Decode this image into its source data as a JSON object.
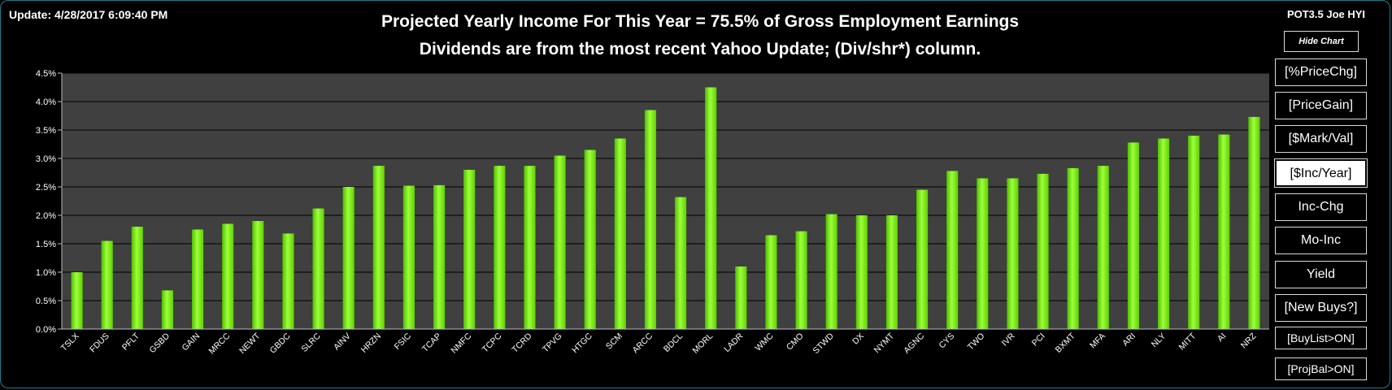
{
  "header": {
    "update": "Update: 4/28/2017 6:09:40 PM",
    "title_line1": "Projected Yearly Income For This Year = 75.5% of Gross Employment Earnings",
    "title_line2": "Dividends are from the most recent Yahoo Update; (Div/shr*) column.",
    "corner_label": "POT3.5 Joe HYI"
  },
  "buttons": {
    "hide_chart": "Hide Chart",
    "items": [
      {
        "label": "[%PriceChg]",
        "active": false
      },
      {
        "label": "[PriceGain]",
        "active": false
      },
      {
        "label": "[$Mark/Val]",
        "active": false
      },
      {
        "label": "[$Inc/Year]",
        "active": true
      },
      {
        "label": "Inc-Chg",
        "active": false
      },
      {
        "label": "Mo-Inc",
        "active": false
      },
      {
        "label": "Yield",
        "active": false
      },
      {
        "label": "[New Buys?]",
        "active": false
      },
      {
        "label": "[BuyList>ON]",
        "active": false
      },
      {
        "label": "[ProjBal>ON]",
        "active": false
      }
    ]
  },
  "colors": {
    "background": "#000000",
    "plot_area": "#404040",
    "bar": "#7fff00",
    "border": "#1b7d8c"
  },
  "chart_data": {
    "type": "bar",
    "categories": [
      "TSLX",
      "FDUS",
      "PFLT",
      "GSBD",
      "GAIN",
      "MRCC",
      "NEWT",
      "GBDC",
      "SLRC",
      "AINV",
      "HRZN",
      "FSIC",
      "TCAP",
      "NMFC",
      "TCPC",
      "TCRD",
      "TPVG",
      "HTGC",
      "SCM",
      "ARCC",
      "BDCL",
      "MORL",
      "LADR",
      "WMC",
      "CMO",
      "STWD",
      "DX",
      "NYMT",
      "AGNC",
      "CYS",
      "TWO",
      "IVR",
      "PCI",
      "BXMT",
      "MFA",
      "ARI",
      "NLY",
      "MITT",
      "AI",
      "NRZ"
    ],
    "values": [
      1.0,
      1.55,
      1.8,
      0.68,
      1.75,
      1.85,
      1.9,
      1.68,
      2.12,
      2.5,
      2.87,
      2.52,
      2.53,
      2.8,
      2.87,
      2.87,
      3.05,
      3.15,
      3.35,
      3.85,
      2.32,
      4.25,
      1.1,
      1.65,
      1.72,
      2.02,
      2.0,
      2.0,
      2.45,
      2.78,
      2.65,
      2.65,
      2.73,
      2.83,
      2.87,
      3.28,
      3.35,
      3.4,
      3.42,
      3.73
    ],
    "ylim": [
      0,
      4.5
    ],
    "yticks": [
      "0.0%",
      "0.5%",
      "1.0%",
      "1.5%",
      "2.0%",
      "2.5%",
      "3.0%",
      "3.5%",
      "4.0%",
      "4.5%"
    ],
    "grid": true,
    "title": "",
    "xlabel": "",
    "ylabel": ""
  }
}
